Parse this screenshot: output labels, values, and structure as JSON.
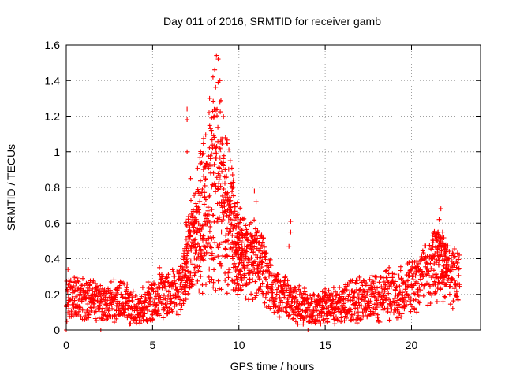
{
  "chart_data": {
    "type": "scatter",
    "title": "Day 011 of 2016, SRMTID for receiver gamb",
    "xlabel": "GPS time / hours",
    "ylabel": "SRMTID / TECUs",
    "xlim": [
      0,
      24
    ],
    "ylim": [
      0,
      1.6
    ],
    "xticks": [
      0,
      5,
      10,
      15,
      20
    ],
    "xtick_labels": [
      "0",
      "5",
      "10",
      "15",
      "20"
    ],
    "yticks": [
      0,
      0.2,
      0.4,
      0.6,
      0.8,
      1,
      1.2,
      1.4,
      1.6
    ],
    "ytick_labels": [
      "0",
      "0.2",
      "0.4",
      "0.6",
      "0.8",
      "1",
      "1.2",
      "1.4",
      "1.6"
    ],
    "grid": true,
    "marker": "+",
    "color": "#ff0000",
    "series": [
      {
        "name": "SRMTID",
        "envelope": [
          [
            0.0,
            0.17
          ],
          [
            0.5,
            0.18
          ],
          [
            1.0,
            0.18
          ],
          [
            1.5,
            0.17
          ],
          [
            2.0,
            0.16
          ],
          [
            2.5,
            0.16
          ],
          [
            3.0,
            0.16
          ],
          [
            3.5,
            0.14
          ],
          [
            4.0,
            0.12
          ],
          [
            4.5,
            0.12
          ],
          [
            5.0,
            0.17
          ],
          [
            5.5,
            0.2
          ],
          [
            6.0,
            0.19
          ],
          [
            6.5,
            0.22
          ],
          [
            7.0,
            0.35
          ],
          [
            7.5,
            0.55
          ],
          [
            8.0,
            0.65
          ],
          [
            8.5,
            0.8
          ],
          [
            9.0,
            0.75
          ],
          [
            9.5,
            0.6
          ],
          [
            10.0,
            0.45
          ],
          [
            10.5,
            0.4
          ],
          [
            11.0,
            0.4
          ],
          [
            11.5,
            0.3
          ],
          [
            12.0,
            0.22
          ],
          [
            12.5,
            0.18
          ],
          [
            13.0,
            0.17
          ],
          [
            13.5,
            0.14
          ],
          [
            14.0,
            0.12
          ],
          [
            14.5,
            0.11
          ],
          [
            15.0,
            0.12
          ],
          [
            15.5,
            0.13
          ],
          [
            16.0,
            0.15
          ],
          [
            16.5,
            0.17
          ],
          [
            17.0,
            0.18
          ],
          [
            17.5,
            0.18
          ],
          [
            18.0,
            0.18
          ],
          [
            18.5,
            0.2
          ],
          [
            19.0,
            0.19
          ],
          [
            19.5,
            0.21
          ],
          [
            20.0,
            0.24
          ],
          [
            20.5,
            0.28
          ],
          [
            21.0,
            0.31
          ],
          [
            21.5,
            0.38
          ],
          [
            22.0,
            0.32
          ],
          [
            22.5,
            0.3
          ],
          [
            22.8,
            0.32
          ]
        ],
        "highlights": [
          [
            8.7,
            1.54
          ],
          [
            8.8,
            1.52
          ],
          [
            8.6,
            1.46
          ],
          [
            8.5,
            1.42
          ],
          [
            8.9,
            1.4
          ],
          [
            8.3,
            1.3
          ],
          [
            8.9,
            1.28
          ],
          [
            7.0,
            1.24
          ],
          [
            7.0,
            1.18
          ],
          [
            8.6,
            1.2
          ],
          [
            8.4,
            1.12
          ],
          [
            9.3,
            1.05
          ],
          [
            8.9,
            1.02
          ],
          [
            7.0,
            1.0
          ],
          [
            9.5,
            0.95
          ],
          [
            9.2,
            0.9
          ],
          [
            7.2,
            0.85
          ],
          [
            9.5,
            0.82
          ],
          [
            10.9,
            0.78
          ],
          [
            11.0,
            0.72
          ],
          [
            13.0,
            0.61
          ],
          [
            13.0,
            0.55
          ],
          [
            12.9,
            0.47
          ],
          [
            21.7,
            0.68
          ],
          [
            21.6,
            0.62
          ],
          [
            21.8,
            0.55
          ],
          [
            21.5,
            0.5
          ],
          [
            22.0,
            0.45
          ],
          [
            18.7,
            0.35
          ],
          [
            0.1,
            0.34
          ],
          [
            2.6,
            0.27
          ],
          [
            5.4,
            0.35
          ],
          [
            0.0,
            0.0
          ],
          [
            2.0,
            0.0
          ],
          [
            14.0,
            0.0
          ]
        ]
      }
    ]
  }
}
